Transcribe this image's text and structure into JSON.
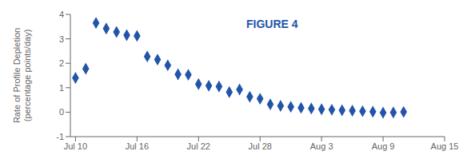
{
  "chart_data": {
    "type": "scatter",
    "title": "FIGURE 4",
    "ylabel": "Rate of Profile Depletion\n(percentage points/day)",
    "x": [
      0,
      1,
      2,
      3,
      4,
      5,
      6,
      7,
      8,
      9,
      10,
      11,
      12,
      13,
      14,
      15,
      16,
      17,
      18,
      19,
      20,
      21,
      22,
      23,
      24,
      25,
      26,
      27,
      28,
      29,
      30,
      31,
      32
    ],
    "values": [
      1.4,
      1.78,
      3.65,
      3.42,
      3.28,
      3.15,
      3.12,
      2.28,
      2.15,
      1.92,
      1.55,
      1.53,
      1.15,
      1.08,
      1.05,
      0.82,
      0.93,
      0.63,
      0.55,
      0.32,
      0.26,
      0.22,
      0.18,
      0.15,
      0.12,
      0.1,
      0.08,
      0.06,
      0.04,
      0.02,
      -0.02,
      -0.01,
      0.01
    ],
    "color": "#2255aa",
    "marker": "diamond",
    "xlim": [
      -0.5,
      36
    ],
    "xticks": [
      {
        "value": 0,
        "label": "Jul 10"
      },
      {
        "value": 6,
        "label": "Jul 16"
      },
      {
        "value": 12,
        "label": "Jul 22"
      },
      {
        "value": 18,
        "label": "Jul 28"
      },
      {
        "value": 24,
        "label": "Aug 3"
      },
      {
        "value": 30,
        "label": "Aug 9"
      },
      {
        "value": 36,
        "label": "Aug 15"
      }
    ],
    "ylim": [
      -1,
      4
    ],
    "yticks": [
      -1,
      0,
      1,
      2,
      3,
      4
    ],
    "grid": false
  }
}
